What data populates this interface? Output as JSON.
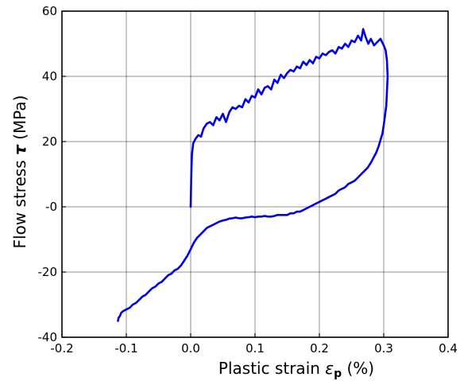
{
  "chart_data": {
    "type": "line",
    "title": "",
    "xlabel": "Plastic strain ",
    "xlabel_symbol": "ε",
    "xlabel_subscript": "p",
    "xlabel_unit": " (%)",
    "ylabel": "Flow stress ",
    "ylabel_symbol": "τ",
    "ylabel_unit": " (MPa)",
    "xlim": [
      -0.2,
      0.4
    ],
    "ylim": [
      -40,
      60
    ],
    "xticks": [
      -0.2,
      -0.1,
      0.0,
      0.1,
      0.2,
      0.3,
      0.4
    ],
    "xtick_labels": [
      "-0.2",
      "-0.1",
      "0.0",
      "0.1",
      "0.2",
      "0.3",
      "0.4"
    ],
    "yticks": [
      -40,
      -20,
      0,
      20,
      40,
      60
    ],
    "ytick_labels": [
      "-40",
      "-20",
      "-0",
      "20",
      "40",
      "60"
    ],
    "grid": true,
    "series": [
      {
        "color": "#0000ee",
        "x": [
          0.0,
          0.001,
          0.002,
          0.004,
          0.008,
          0.012,
          0.016,
          0.02,
          0.025,
          0.03,
          0.035,
          0.04,
          0.045,
          0.05,
          0.055,
          0.06,
          0.065,
          0.07,
          0.075,
          0.08,
          0.085,
          0.09,
          0.095,
          0.1,
          0.105,
          0.11,
          0.115,
          0.12,
          0.125,
          0.13,
          0.135,
          0.14,
          0.145,
          0.15,
          0.155,
          0.16,
          0.165,
          0.17,
          0.175,
          0.18,
          0.185,
          0.19,
          0.195,
          0.2,
          0.205,
          0.21,
          0.215,
          0.22,
          0.225,
          0.23,
          0.235,
          0.24,
          0.245,
          0.25,
          0.255,
          0.26,
          0.265,
          0.268,
          0.272,
          0.276,
          0.28,
          0.285,
          0.29,
          0.295,
          0.3,
          0.303,
          0.305,
          0.306,
          0.305,
          0.304,
          0.302,
          0.3,
          0.298,
          0.295,
          0.292,
          0.288,
          0.284,
          0.28,
          0.275,
          0.27,
          0.265,
          0.26,
          0.255,
          0.25,
          0.245,
          0.24,
          0.235,
          0.23,
          0.225,
          0.22,
          0.215,
          0.21,
          0.205,
          0.2,
          0.195,
          0.19,
          0.185,
          0.18,
          0.175,
          0.17,
          0.165,
          0.16,
          0.155,
          0.15,
          0.145,
          0.14,
          0.135,
          0.13,
          0.125,
          0.12,
          0.115,
          0.11,
          0.105,
          0.1,
          0.095,
          0.09,
          0.085,
          0.08,
          0.075,
          0.07,
          0.065,
          0.06,
          0.055,
          0.05,
          0.045,
          0.04,
          0.035,
          0.03,
          0.025,
          0.02,
          0.015,
          0.01,
          0.005,
          0.0,
          -0.005,
          -0.01,
          -0.015,
          -0.02,
          -0.025,
          -0.03,
          -0.035,
          -0.04,
          -0.045,
          -0.05,
          -0.055,
          -0.06,
          -0.065,
          -0.07,
          -0.075,
          -0.08,
          -0.085,
          -0.09,
          -0.095,
          -0.1,
          -0.105,
          -0.108,
          -0.11,
          -0.112,
          -0.113
        ],
        "y": [
          0.0,
          10.0,
          16.0,
          19.5,
          21.0,
          22.0,
          21.5,
          24.0,
          25.5,
          26.0,
          25.0,
          27.5,
          26.5,
          28.5,
          26.0,
          29.0,
          30.5,
          30.0,
          31.0,
          30.5,
          33.0,
          32.0,
          34.0,
          33.5,
          36.0,
          34.5,
          36.5,
          37.0,
          36.0,
          39.0,
          38.0,
          40.5,
          39.5,
          41.0,
          42.0,
          41.5,
          43.0,
          42.5,
          44.5,
          43.5,
          45.0,
          44.0,
          46.0,
          45.5,
          47.0,
          46.5,
          47.5,
          48.0,
          47.0,
          49.0,
          48.5,
          50.0,
          49.0,
          51.0,
          50.5,
          52.5,
          51.0,
          54.5,
          52.0,
          50.0,
          51.5,
          49.5,
          50.5,
          51.5,
          49.5,
          48.0,
          45.0,
          40.0,
          35.0,
          31.0,
          28.0,
          25.0,
          22.5,
          20.5,
          18.5,
          16.5,
          15.0,
          13.5,
          12.0,
          11.0,
          10.0,
          9.0,
          8.0,
          7.5,
          7.0,
          6.0,
          5.5,
          5.0,
          4.0,
          3.5,
          3.0,
          2.5,
          2.0,
          1.5,
          1.0,
          0.5,
          0.0,
          -0.5,
          -1.0,
          -1.5,
          -1.5,
          -2.0,
          -2.0,
          -2.5,
          -2.5,
          -2.5,
          -2.5,
          -2.8,
          -3.0,
          -3.0,
          -2.8,
          -3.0,
          -3.0,
          -3.2,
          -3.0,
          -3.2,
          -3.3,
          -3.5,
          -3.5,
          -3.3,
          -3.5,
          -3.6,
          -4.0,
          -4.2,
          -4.5,
          -5.0,
          -5.5,
          -6.0,
          -6.5,
          -7.5,
          -8.5,
          -9.5,
          -11.0,
          -13.0,
          -15.0,
          -16.5,
          -18.0,
          -19.0,
          -19.5,
          -20.5,
          -21.0,
          -22.0,
          -23.0,
          -23.5,
          -24.5,
          -25.0,
          -26.0,
          -27.0,
          -27.5,
          -28.5,
          -29.5,
          -30.0,
          -31.0,
          -31.5,
          -32.0,
          -32.5,
          -33.5,
          -34.0,
          -35.0
        ]
      }
    ]
  }
}
